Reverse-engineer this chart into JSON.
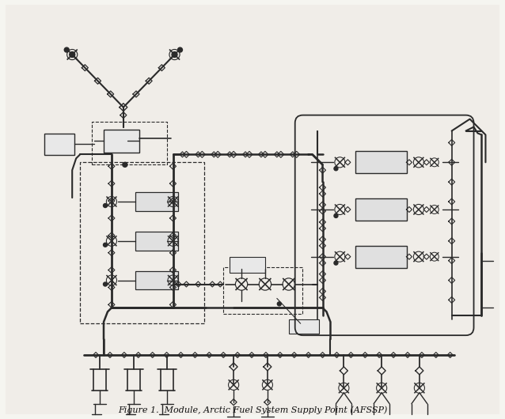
{
  "title": "Figure 1.  Module, Arctic Fuel System Supply Point (AFSSP)",
  "bg_color": "#f5f5f0",
  "line_color": "#2a2a2a",
  "fig_width": 6.38,
  "fig_height": 5.3,
  "dpi": 100,
  "content_bg": "#f0f0eb"
}
